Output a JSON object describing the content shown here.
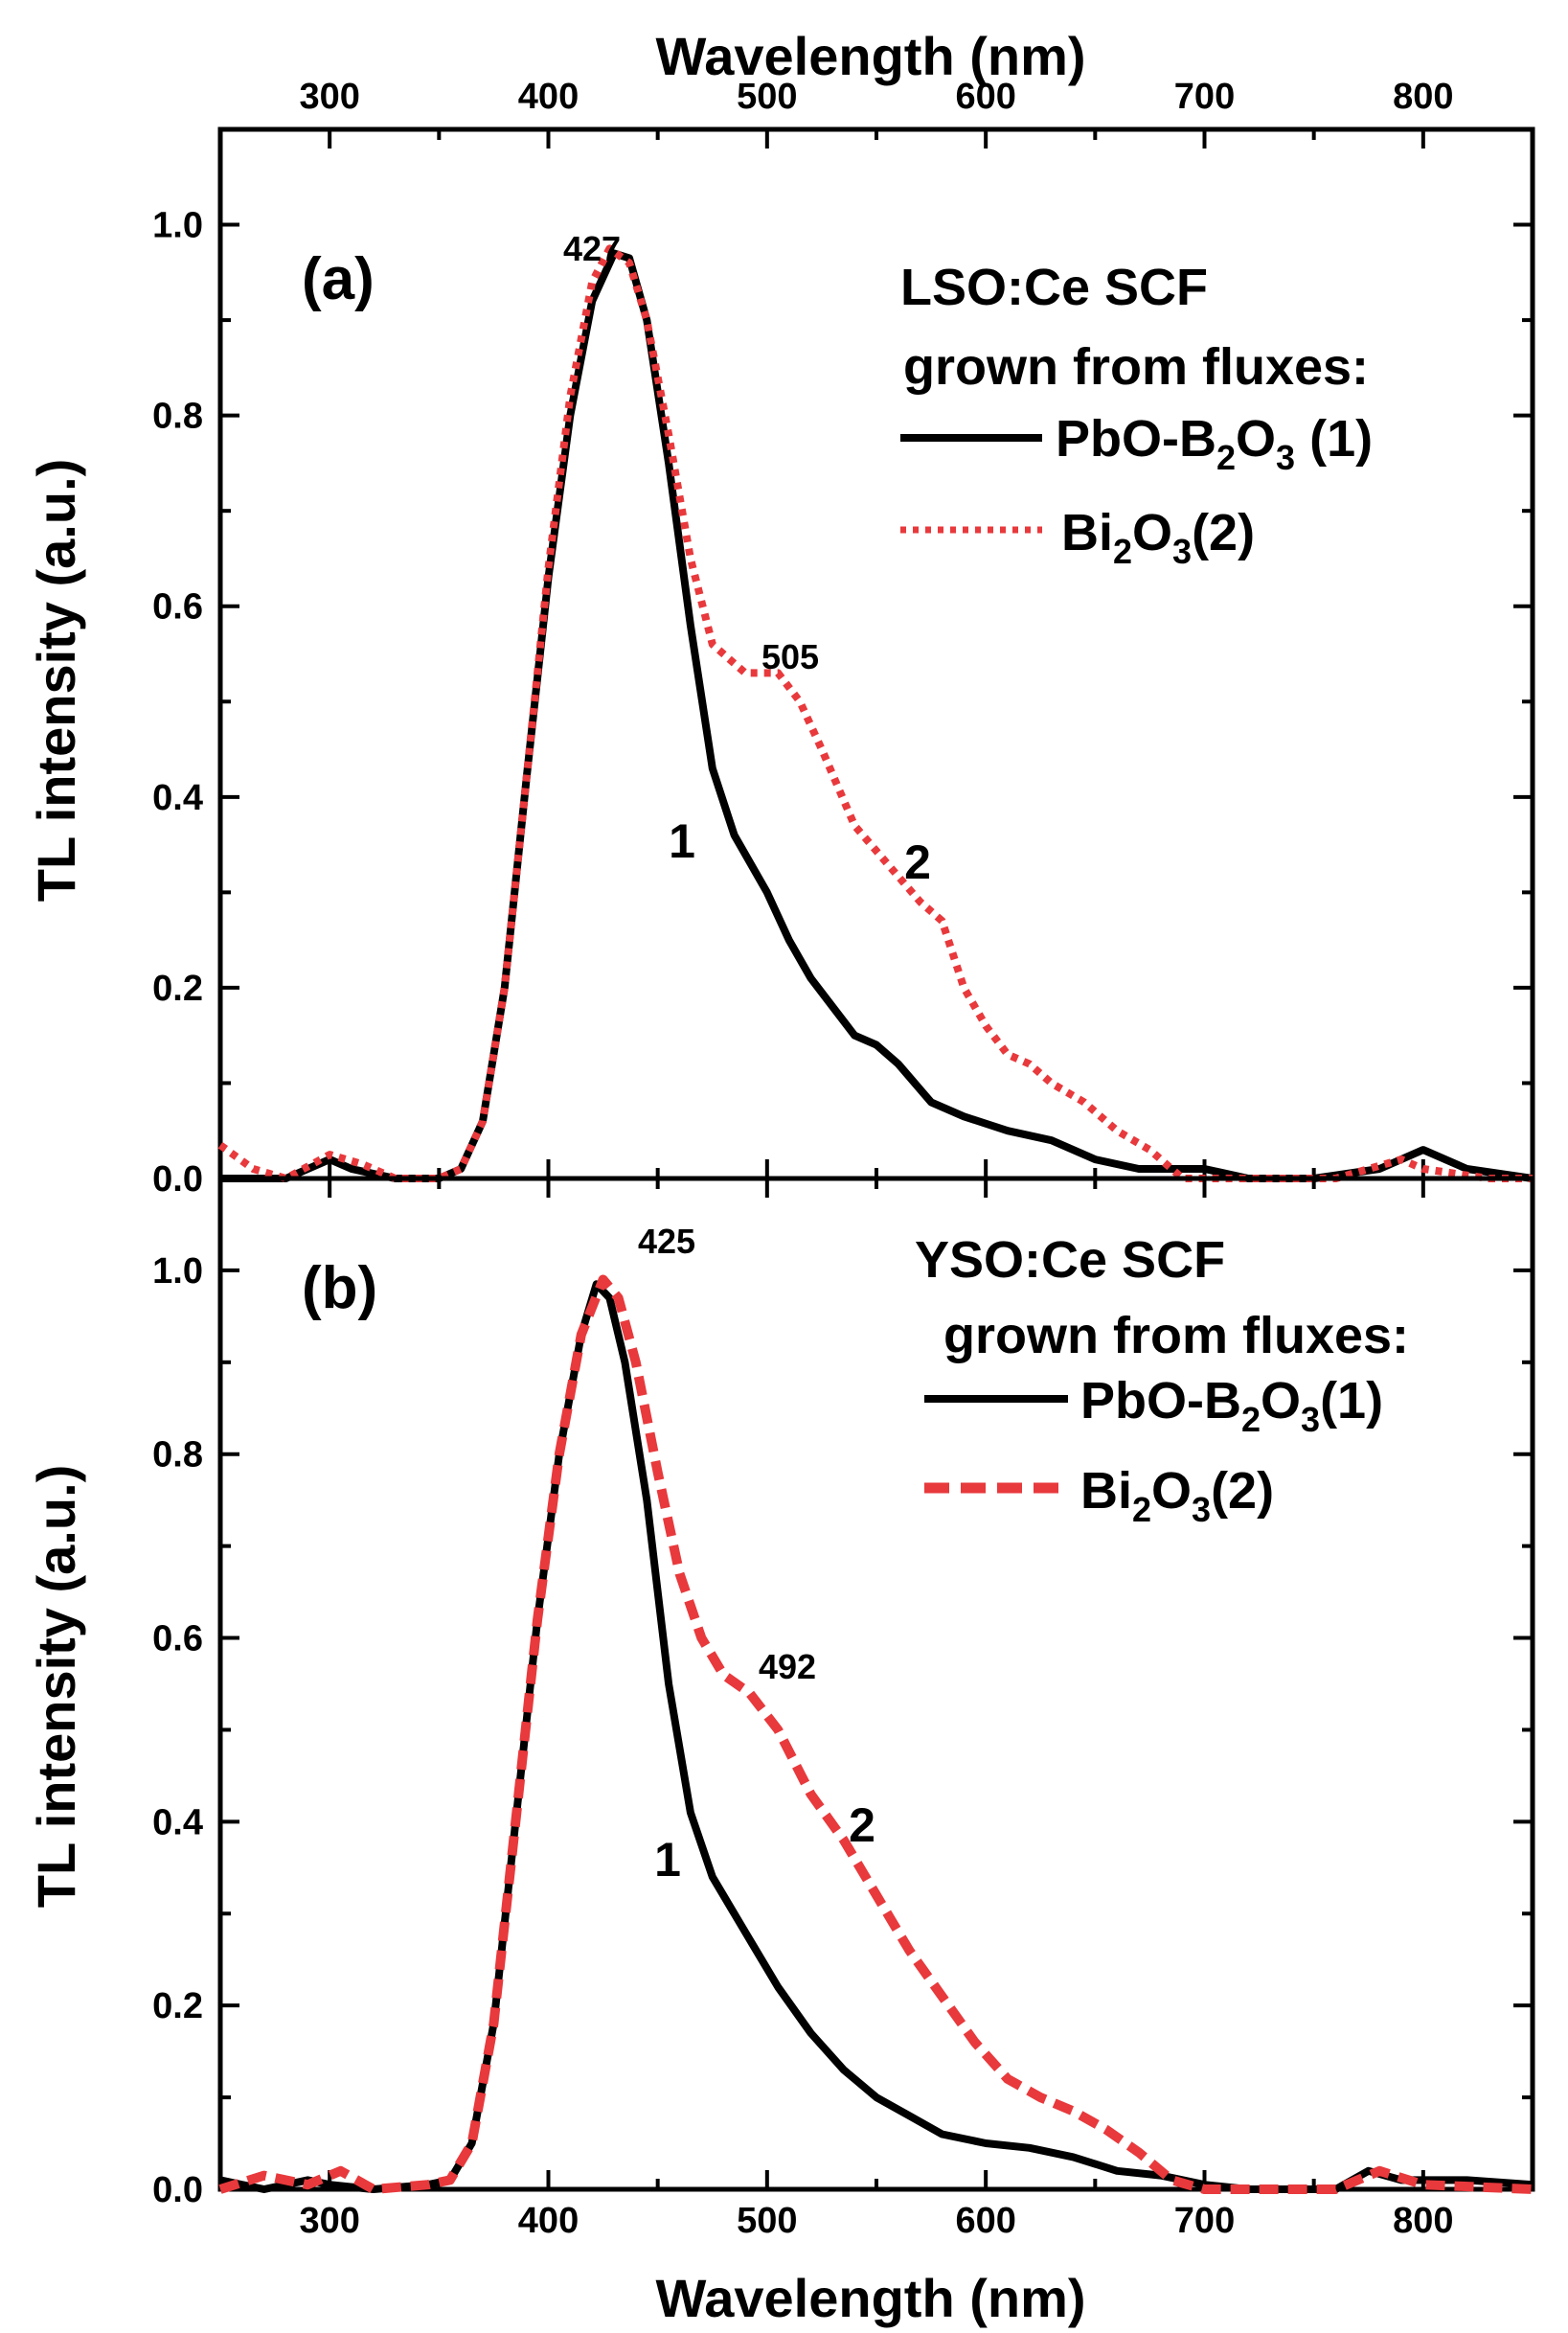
{
  "chart_data": [
    {
      "panel": "(a)",
      "type": "line",
      "top_xlabel": "Wavelength (nm)",
      "ylabel": "TL intensity (a.u.)",
      "xlim": [
        250,
        850
      ],
      "ylim": [
        0,
        1.1
      ],
      "xticks": [
        "300",
        "400",
        "500",
        "600",
        "700",
        "800"
      ],
      "yticks": [
        "0.0",
        "0.2",
        "0.4",
        "0.6",
        "0.8",
        "1.0"
      ],
      "legend": {
        "title_lines": [
          "LSO:Ce SCF",
          "grown from fluxes:"
        ],
        "entry1": {
          "main": "PbO-B",
          "sub1": "2",
          "mid": "O",
          "sub2": "3",
          "tail": " (1)"
        },
        "entry2": {
          "main": "Bi",
          "sub1": "2",
          "mid": "O",
          "sub2": "3",
          "tail": "(2)"
        }
      },
      "annotations": {
        "peak": "427",
        "shoulder": "505",
        "curve1": "1",
        "curve2": "2"
      },
      "series": [
        {
          "name": "PbO-B2O3 (1)",
          "color": "#000000",
          "style": "solid",
          "points": [
            [
              250,
              0.0
            ],
            [
              280,
              0.0
            ],
            [
              300,
              0.02
            ],
            [
              310,
              0.01
            ],
            [
              330,
              0.0
            ],
            [
              350,
              0.0
            ],
            [
              360,
              0.01
            ],
            [
              370,
              0.06
            ],
            [
              380,
              0.2
            ],
            [
              390,
              0.42
            ],
            [
              400,
              0.63
            ],
            [
              410,
              0.8
            ],
            [
              420,
              0.92
            ],
            [
              430,
              0.97
            ],
            [
              437,
              0.965
            ],
            [
              445,
              0.9
            ],
            [
              455,
              0.75
            ],
            [
              465,
              0.58
            ],
            [
              475,
              0.43
            ],
            [
              485,
              0.36
            ],
            [
              500,
              0.3
            ],
            [
              510,
              0.25
            ],
            [
              520,
              0.21
            ],
            [
              530,
              0.18
            ],
            [
              540,
              0.15
            ],
            [
              550,
              0.14
            ],
            [
              560,
              0.12
            ],
            [
              575,
              0.08
            ],
            [
              590,
              0.065
            ],
            [
              610,
              0.05
            ],
            [
              630,
              0.04
            ],
            [
              650,
              0.02
            ],
            [
              670,
              0.01
            ],
            [
              700,
              0.01
            ],
            [
              720,
              0.0
            ],
            [
              750,
              0.0
            ],
            [
              780,
              0.01
            ],
            [
              800,
              0.03
            ],
            [
              820,
              0.01
            ],
            [
              850,
              0.0
            ]
          ]
        },
        {
          "name": "Bi2O3(2)",
          "color": "#e8393c",
          "style": "dotted",
          "points": [
            [
              250,
              0.035
            ],
            [
              265,
              0.01
            ],
            [
              280,
              0.0
            ],
            [
              300,
              0.025
            ],
            [
              315,
              0.015
            ],
            [
              330,
              0.0
            ],
            [
              350,
              0.0
            ],
            [
              360,
              0.01
            ],
            [
              370,
              0.06
            ],
            [
              380,
              0.2
            ],
            [
              390,
              0.42
            ],
            [
              400,
              0.64
            ],
            [
              410,
              0.82
            ],
            [
              420,
              0.94
            ],
            [
              428,
              0.975
            ],
            [
              437,
              0.96
            ],
            [
              445,
              0.9
            ],
            [
              455,
              0.78
            ],
            [
              465,
              0.65
            ],
            [
              475,
              0.56
            ],
            [
              490,
              0.53
            ],
            [
              505,
              0.53
            ],
            [
              515,
              0.5
            ],
            [
              525,
              0.45
            ],
            [
              540,
              0.37
            ],
            [
              555,
              0.33
            ],
            [
              570,
              0.29
            ],
            [
              580,
              0.27
            ],
            [
              590,
              0.2
            ],
            [
              600,
              0.16
            ],
            [
              610,
              0.13
            ],
            [
              620,
              0.12
            ],
            [
              630,
              0.1
            ],
            [
              645,
              0.08
            ],
            [
              660,
              0.05
            ],
            [
              675,
              0.03
            ],
            [
              690,
              0.0
            ],
            [
              720,
              0.0
            ],
            [
              760,
              0.0
            ],
            [
              790,
              0.02
            ],
            [
              800,
              0.01
            ],
            [
              830,
              0.0
            ],
            [
              850,
              0.0
            ]
          ]
        }
      ]
    },
    {
      "panel": "(b)",
      "type": "line",
      "xlabel": "Wavelength (nm)",
      "ylabel": "TL intensity (a.u.)",
      "xlim": [
        250,
        850
      ],
      "ylim": [
        0,
        1.1
      ],
      "xticks": [
        "300",
        "400",
        "500",
        "600",
        "700",
        "800"
      ],
      "yticks": [
        "0.0",
        "0.2",
        "0.4",
        "0.6",
        "0.8",
        "1.0"
      ],
      "legend": {
        "title_lines": [
          "YSO:Ce SCF",
          "grown from fluxes:"
        ],
        "entry1": {
          "main": "PbO-B",
          "sub1": "2",
          "mid": "O",
          "sub2": "3",
          "tail": "(1)"
        },
        "entry2": {
          "main": "Bi",
          "sub1": "2",
          "mid": "O",
          "sub2": "3",
          "tail": "(2)"
        }
      },
      "annotations": {
        "peak": "425",
        "shoulder": "492",
        "curve1": "1",
        "curve2": "2"
      },
      "series": [
        {
          "name": "PbO-B2O3(1)",
          "color": "#000000",
          "style": "solid",
          "points": [
            [
              250,
              0.01
            ],
            [
              270,
              0.0
            ],
            [
              290,
              0.01
            ],
            [
              300,
              0.005
            ],
            [
              320,
              0.0
            ],
            [
              345,
              0.005
            ],
            [
              355,
              0.01
            ],
            [
              365,
              0.05
            ],
            [
              375,
              0.18
            ],
            [
              385,
              0.4
            ],
            [
              395,
              0.62
            ],
            [
              405,
              0.8
            ],
            [
              415,
              0.93
            ],
            [
              422,
              0.985
            ],
            [
              428,
              0.97
            ],
            [
              435,
              0.9
            ],
            [
              445,
              0.75
            ],
            [
              455,
              0.55
            ],
            [
              465,
              0.41
            ],
            [
              475,
              0.34
            ],
            [
              490,
              0.28
            ],
            [
              505,
              0.22
            ],
            [
              520,
              0.17
            ],
            [
              535,
              0.13
            ],
            [
              550,
              0.1
            ],
            [
              565,
              0.08
            ],
            [
              580,
              0.06
            ],
            [
              600,
              0.05
            ],
            [
              620,
              0.045
            ],
            [
              640,
              0.035
            ],
            [
              660,
              0.02
            ],
            [
              680,
              0.015
            ],
            [
              700,
              0.005
            ],
            [
              720,
              0.0
            ],
            [
              760,
              0.0
            ],
            [
              775,
              0.02
            ],
            [
              790,
              0.01
            ],
            [
              820,
              0.01
            ],
            [
              850,
              0.005
            ]
          ]
        },
        {
          "name": "Bi2O3(2)",
          "color": "#e8393c",
          "style": "dashed",
          "points": [
            [
              250,
              0.0
            ],
            [
              270,
              0.015
            ],
            [
              290,
              0.005
            ],
            [
              305,
              0.02
            ],
            [
              320,
              0.0
            ],
            [
              345,
              0.005
            ],
            [
              355,
              0.01
            ],
            [
              365,
              0.05
            ],
            [
              375,
              0.18
            ],
            [
              385,
              0.4
            ],
            [
              395,
              0.62
            ],
            [
              405,
              0.8
            ],
            [
              415,
              0.93
            ],
            [
              425,
              0.99
            ],
            [
              432,
              0.97
            ],
            [
              440,
              0.9
            ],
            [
              450,
              0.78
            ],
            [
              460,
              0.67
            ],
            [
              470,
              0.6
            ],
            [
              480,
              0.56
            ],
            [
              492,
              0.54
            ],
            [
              505,
              0.5
            ],
            [
              520,
              0.43
            ],
            [
              535,
              0.38
            ],
            [
              550,
              0.32
            ],
            [
              565,
              0.26
            ],
            [
              580,
              0.21
            ],
            [
              595,
              0.16
            ],
            [
              610,
              0.12
            ],
            [
              625,
              0.1
            ],
            [
              640,
              0.085
            ],
            [
              655,
              0.065
            ],
            [
              670,
              0.04
            ],
            [
              685,
              0.01
            ],
            [
              700,
              0.0
            ],
            [
              720,
              0.0
            ],
            [
              760,
              0.0
            ],
            [
              780,
              0.02
            ],
            [
              800,
              0.005
            ],
            [
              850,
              0.0
            ]
          ]
        }
      ]
    }
  ]
}
